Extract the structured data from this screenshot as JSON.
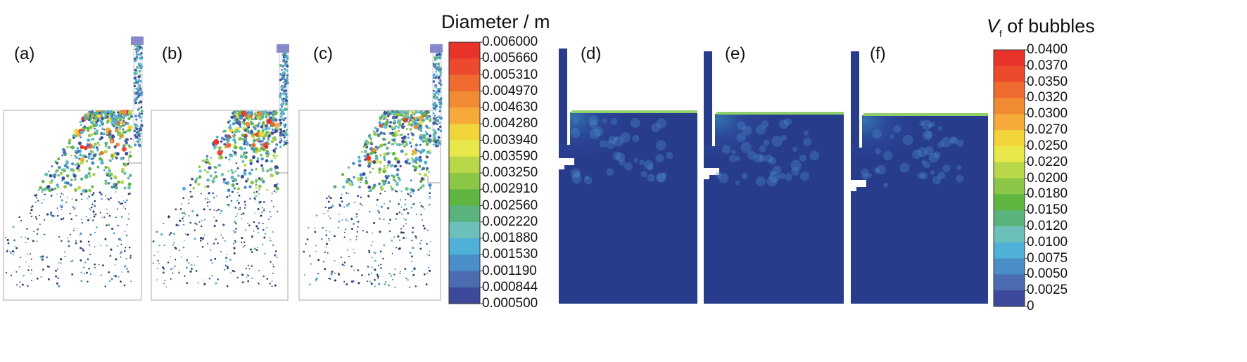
{
  "figure": {
    "panels_left": [
      {
        "label": "(a)"
      },
      {
        "label": "(b)"
      },
      {
        "label": "(c)"
      }
    ],
    "panels_right": [
      {
        "label": "(d)"
      },
      {
        "label": "(e)"
      },
      {
        "label": "(f)"
      }
    ]
  },
  "colorbars": {
    "diameter": {
      "title": "Diameter / m",
      "ticks": [
        "0.006000",
        "0.005660",
        "0.005310",
        "0.004970",
        "0.004630",
        "0.004280",
        "0.003940",
        "0.003590",
        "0.003250",
        "0.002910",
        "0.002560",
        "0.002220",
        "0.001880",
        "0.001530",
        "0.001190",
        "0.000844",
        "0.000500"
      ]
    },
    "vf": {
      "title_symbol": "V",
      "title_sub": "f",
      "title_rest": " of bubbles",
      "ticks": [
        "0.0400",
        "0.0370",
        "0.0350",
        "0.0320",
        "0.0300",
        "0.0270",
        "0.0250",
        "0.0220",
        "0.0200",
        "0.0180",
        "0.0150",
        "0.0120",
        "0.0100",
        "0.0075",
        "0.0050",
        "0.0025",
        "0"
      ]
    },
    "colors": [
      "#e8322a",
      "#ec4a2c",
      "#ef6a2f",
      "#f08a33",
      "#f5aa3a",
      "#f0d43a",
      "#e8e84a",
      "#b8d84a",
      "#8cc646",
      "#5fb540",
      "#5ab27c",
      "#6cc0ba",
      "#4fb0d8",
      "#4a8ec8",
      "#4b6cb0",
      "#3d4a9c"
    ]
  }
}
